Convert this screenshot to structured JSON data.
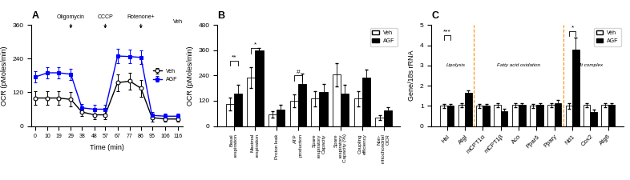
{
  "chart_data": [
    {
      "type": "line",
      "title": "A",
      "x_label": "Time (min)",
      "y_label": "OCR (pMoles/min)",
      "x": [
        0,
        10,
        19,
        29,
        38,
        48,
        57,
        67,
        77,
        86,
        95,
        106,
        116
      ],
      "xlim": [
        -3,
        120
      ],
      "xticks": [
        0,
        10,
        19,
        29,
        38,
        48,
        57,
        67,
        77,
        86,
        95,
        106,
        116
      ],
      "ylim": [
        0,
        360
      ],
      "yticks": [
        0,
        120,
        240,
        360
      ],
      "series": [
        {
          "name": "Veh",
          "color": "#000000",
          "marker": "open_circle",
          "values": [
            100,
            100,
            100,
            95,
            50,
            40,
            40,
            155,
            160,
            135,
            30,
            25,
            25
          ],
          "errors": [
            25,
            25,
            25,
            25,
            15,
            15,
            15,
            30,
            30,
            30,
            15,
            10,
            10
          ]
        },
        {
          "name": "AGF",
          "color": "#0000ff",
          "marker": "square",
          "values": [
            175,
            190,
            190,
            185,
            65,
            60,
            60,
            250,
            248,
            245,
            38,
            35,
            35
          ],
          "errors": [
            20,
            20,
            20,
            20,
            15,
            15,
            15,
            25,
            25,
            25,
            12,
            10,
            10
          ]
        }
      ],
      "legend": "center right",
      "annotations": [
        {
          "text": "Oligomycin",
          "x": 29,
          "y": 340,
          "arrow": true
        },
        {
          "text": "CCCP",
          "x": 57,
          "y": 340,
          "arrow": true
        },
        {
          "text": "Rotenone+",
          "x": 86,
          "y": 340,
          "arrow": true
        },
        {
          "text": "Veh",
          "x": 116,
          "y": 360,
          "arrow": false
        }
      ]
    },
    {
      "type": "bar",
      "title": "B",
      "y_label": "OCR (pMoles/min)",
      "categories": [
        "Basal respiration",
        "Maximal respiration",
        "Proton leak",
        "ATP production",
        "Spare respiratory Capacity",
        "Spare respiratory Capacity (%)",
        "Coupling efficiency",
        "Non-mitochondrial OCR"
      ],
      "ylim": [
        0,
        480
      ],
      "yticks": [
        0,
        120,
        240,
        360,
        480
      ],
      "series": [
        {
          "name": "Veh",
          "color": "#ffffff",
          "values": [
            105,
            230,
            55,
            120,
            130,
            245,
            130,
            40
          ],
          "errors": [
            30,
            50,
            15,
            30,
            35,
            55,
            35,
            10
          ]
        },
        {
          "name": "AGF",
          "color": "#000000",
          "values": [
            155,
            360,
            80,
            200,
            160,
            155,
            230,
            75
          ],
          "errors": [
            40,
            10,
            20,
            50,
            40,
            40,
            40,
            15
          ]
        }
      ],
      "legend": "upper right",
      "significance": [
        {
          "category": "Basal respiration",
          "text": "**",
          "y": 310
        },
        {
          "category": "Maximal respiration",
          "text": "*",
          "y": 370
        },
        {
          "category": "ATP production",
          "text": "#",
          "y": 240
        }
      ]
    },
    {
      "type": "bar",
      "title": "C",
      "y_label": "Gene/18s rRNA",
      "categories": [
        "Hsl",
        "Atgl",
        "mCPT1α",
        "mCPT1β",
        "Aco",
        "Pparδ",
        "Pparγ",
        "Nd1",
        "Cox2",
        "Atg6"
      ],
      "ylim": [
        0,
        5
      ],
      "yticks": [
        0,
        1,
        2,
        3,
        4,
        5
      ],
      "series": [
        {
          "name": "Veh",
          "color": "#ffffff",
          "values": [
            1.0,
            1.05,
            1.0,
            1.05,
            1.05,
            1.0,
            1.05,
            1.0,
            1.05,
            1.05
          ],
          "errors": [
            0.1,
            0.1,
            0.1,
            0.1,
            0.1,
            0.1,
            0.1,
            0.15,
            0.1,
            0.1
          ]
        },
        {
          "name": "AGF",
          "color": "#000000",
          "values": [
            1.0,
            1.65,
            1.0,
            0.75,
            1.05,
            1.05,
            1.15,
            3.8,
            0.7,
            1.05
          ],
          "errors": [
            0.1,
            0.1,
            0.1,
            0.1,
            0.1,
            0.1,
            0.15,
            0.6,
            0.1,
            0.1
          ]
        }
      ],
      "legend": "upper right",
      "significance": [
        {
          "category": "Hsl",
          "text": "***",
          "y": 4.5
        },
        {
          "category": "Nd1",
          "text": "*",
          "y": 4.7
        }
      ],
      "sections": [
        {
          "label": "Lipolysis",
          "categories": [
            "Hsl",
            "Atgl"
          ],
          "y": 3.0
        },
        {
          "label": "Fatty acid oxidation",
          "categories": [
            "mCPT1α",
            "mCPT1β",
            "Aco",
            "Pparδ",
            "Pparγ"
          ],
          "y": 3.0
        },
        {
          "label": "Mt complex",
          "categories": [
            "Nd1",
            "Cox2",
            "Atg6"
          ],
          "y": 3.0
        }
      ],
      "divider": {
        "color": "#ff8c00",
        "line_style": "dashed"
      }
    }
  ]
}
